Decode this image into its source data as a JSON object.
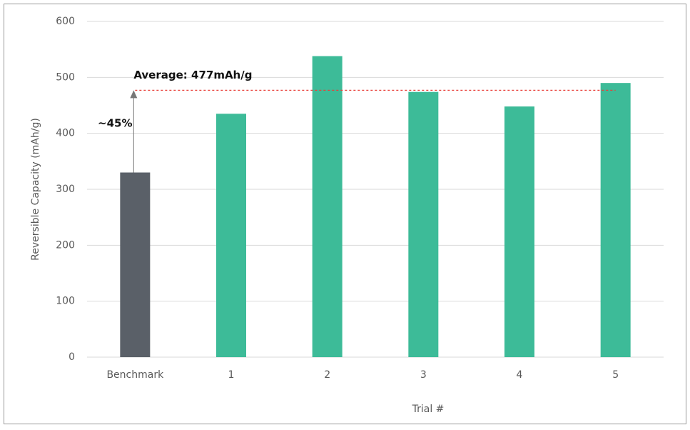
{
  "chart_data": {
    "type": "bar",
    "x_label": "Trial #",
    "y_label": "Reversible Capacity (mAh/g)",
    "categories": [
      "Benchmark",
      "1",
      "2",
      "3",
      "4",
      "5"
    ],
    "values": [
      330,
      435,
      538,
      474,
      448,
      490
    ],
    "colors": [
      "#5a6068",
      "#3dbb98",
      "#3dbb98",
      "#3dbb98",
      "#3dbb98",
      "#3dbb98"
    ],
    "ylim": [
      0,
      600
    ],
    "yticks": [
      0,
      100,
      200,
      300,
      400,
      500,
      600
    ],
    "grid": true,
    "reference_line": {
      "value": 477,
      "label": "Average: 477mAh/g",
      "color": "#e8403a"
    },
    "annotation": "~45%"
  }
}
